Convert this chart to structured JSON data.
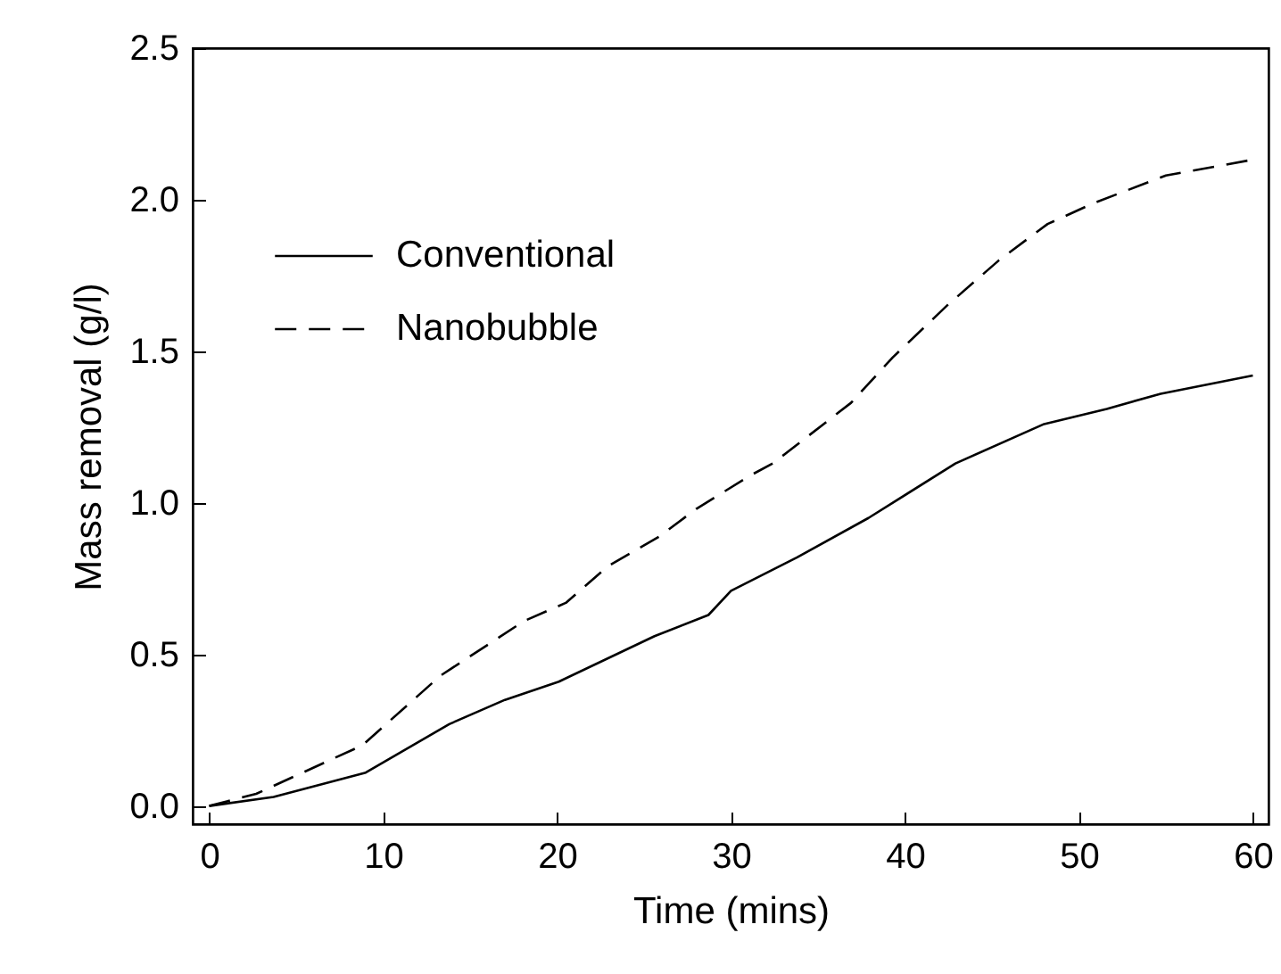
{
  "chart_data": {
    "type": "line",
    "xlabel": "Time (mins)",
    "ylabel": "Mass removal (g/l)",
    "xlim": [
      -0.95,
      60.9
    ],
    "ylim": [
      -0.06,
      2.5
    ],
    "xticks": [
      0,
      10,
      20,
      30,
      40,
      50,
      60
    ],
    "yticks": [
      {
        "value": 0,
        "label": "0.0"
      },
      {
        "value": 0.5,
        "label": "0.5"
      },
      {
        "value": 1,
        "label": "1.0"
      },
      {
        "value": 1.5,
        "label": "1.5"
      },
      {
        "value": 2,
        "label": "2.0"
      },
      {
        "value": 2.5,
        "label": "2.5"
      }
    ],
    "legend": "top left",
    "grid": false,
    "marker": "none",
    "series": [
      {
        "name": "Conventional",
        "color": "#000000",
        "line_style": "solid",
        "x": [
          0,
          3.7,
          9.0,
          13.8,
          17.0,
          20.1,
          25.6,
          28.7,
          30.0,
          33.8,
          37.9,
          42.9,
          48.0,
          51.6,
          54.7,
          60.0
        ],
        "values": [
          0,
          0.03,
          0.11,
          0.27,
          0.35,
          0.41,
          0.56,
          0.63,
          0.71,
          0.82,
          0.95,
          1.13,
          1.26,
          1.31,
          1.36,
          1.42
        ]
      },
      {
        "name": "Nanobubble",
        "color": "#000000",
        "line_style": "dashed",
        "x": [
          0,
          2.7,
          8.8,
          13.3,
          18.1,
          20.5,
          22.9,
          25.9,
          28.0,
          31.1,
          32.4,
          36.9,
          39.3,
          42.4,
          45.4,
          48.2,
          50.9,
          55.0,
          59.8
        ],
        "values": [
          0,
          0.04,
          0.2,
          0.43,
          0.61,
          0.67,
          0.79,
          0.89,
          0.98,
          1.09,
          1.13,
          1.33,
          1.48,
          1.65,
          1.8,
          1.92,
          1.99,
          2.08,
          2.13
        ]
      }
    ]
  }
}
